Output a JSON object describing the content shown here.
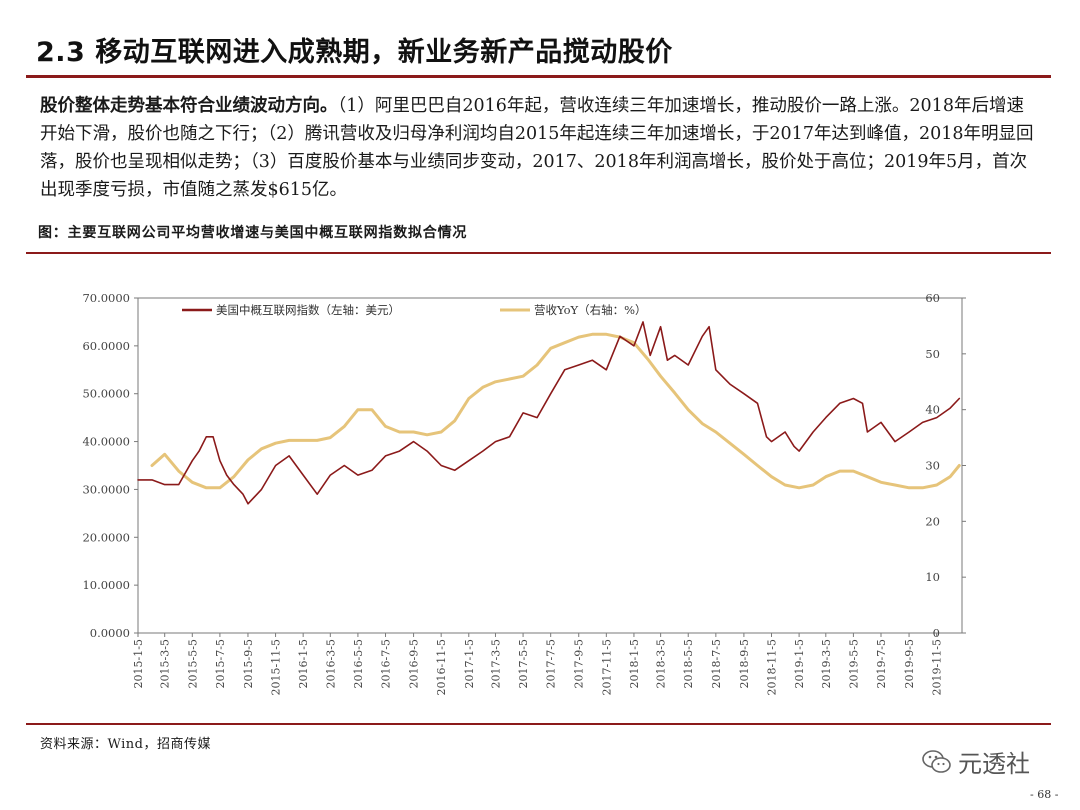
{
  "title": "2.3 移动互联网进入成熟期，新业务新产品搅动股价",
  "paragraph": {
    "lead": "股价整体走势基本符合业绩波动方向。",
    "rest": "（1）阿里巴巴自2016年起，营收连续三年加速增长，推动股价一路上涨。2018年后增速开始下滑，股价也随之下行；（2）腾讯营收及归母净利润均自2015年起连续三年加速增长，于2017年达到峰值，2018年明显回落，股价也呈现相似走势；（3）百度股价基本与业绩同步变动，2017、2018年利润高增长，股价处于高位；2019年5月，首次出现季度亏损，市值随之蒸发$615亿。"
  },
  "figure_caption": "图：主要互联网公司平均营收增速与美国中概互联网指数拟合情况",
  "source": "资料来源：Wind，招商传媒",
  "watermark": "元透社",
  "page_number": "- 68 -",
  "colors": {
    "accent": "#8b1a1a",
    "index_line": "#8b1a1a",
    "yoy_line": "#e6c47a"
  },
  "chart_data": {
    "type": "line",
    "x_tick_labels": [
      "2015-1-5",
      "2015-3-5",
      "2015-5-5",
      "2015-7-5",
      "2015-9-5",
      "2015-11-5",
      "2016-1-5",
      "2016-3-5",
      "2016-5-5",
      "2016-7-5",
      "2016-9-5",
      "2016-11-5",
      "2017-1-5",
      "2017-3-5",
      "2017-5-5",
      "2017-7-5",
      "2017-9-5",
      "2017-11-5",
      "2018-1-5",
      "2018-3-5",
      "2018-5-5",
      "2018-7-5",
      "2018-9-5",
      "2018-11-5",
      "2019-1-5",
      "2019-3-5",
      "2019-5-5",
      "2019-7-5",
      "2019-9-5",
      "2019-11-5"
    ],
    "y_left": {
      "range": [
        0,
        70
      ],
      "tick_labels": [
        "0.0000",
        "10.0000",
        "20.0000",
        "30.0000",
        "40.0000",
        "50.0000",
        "60.0000",
        "70.0000"
      ]
    },
    "y_right": {
      "range": [
        0,
        60
      ],
      "tick_labels": [
        "0",
        "10",
        "20",
        "30",
        "40",
        "50",
        "60"
      ]
    },
    "legend_placement": "top",
    "series": [
      {
        "name": "美国中概互联网指数（左轴：美元）",
        "axis": "left",
        "x": [
          "2015-01-05",
          "2015-02-05",
          "2015-03-05",
          "2015-04-05",
          "2015-05-05",
          "2015-05-20",
          "2015-06-05",
          "2015-06-20",
          "2015-07-05",
          "2015-07-20",
          "2015-08-05",
          "2015-08-25",
          "2015-09-05",
          "2015-10-05",
          "2015-11-05",
          "2015-12-05",
          "2016-01-05",
          "2016-02-05",
          "2016-03-05",
          "2016-04-05",
          "2016-05-05",
          "2016-06-05",
          "2016-07-05",
          "2016-08-05",
          "2016-09-05",
          "2016-10-05",
          "2016-11-05",
          "2016-12-05",
          "2017-01-05",
          "2017-02-05",
          "2017-03-05",
          "2017-04-05",
          "2017-05-05",
          "2017-06-05",
          "2017-07-05",
          "2017-08-05",
          "2017-09-05",
          "2017-10-05",
          "2017-11-05",
          "2017-12-05",
          "2018-01-05",
          "2018-01-25",
          "2018-02-10",
          "2018-03-05",
          "2018-03-20",
          "2018-04-05",
          "2018-05-05",
          "2018-06-05",
          "2018-06-20",
          "2018-07-05",
          "2018-08-05",
          "2018-09-05",
          "2018-10-05",
          "2018-10-25",
          "2018-11-05",
          "2018-12-05",
          "2018-12-25",
          "2019-01-05",
          "2019-02-05",
          "2019-03-05",
          "2019-04-05",
          "2019-05-05",
          "2019-05-25",
          "2019-06-05",
          "2019-07-05",
          "2019-08-05",
          "2019-09-05",
          "2019-10-05",
          "2019-11-05",
          "2019-12-05",
          "2019-12-25"
        ],
        "values": [
          32,
          32,
          31,
          31,
          36,
          38,
          41,
          41,
          36,
          33,
          31,
          29,
          27,
          30,
          35,
          37,
          33,
          29,
          33,
          35,
          33,
          34,
          37,
          38,
          40,
          38,
          35,
          34,
          36,
          38,
          40,
          41,
          46,
          45,
          50,
          55,
          56,
          57,
          55,
          62,
          60,
          65,
          58,
          64,
          57,
          58,
          56,
          62,
          64,
          55,
          52,
          50,
          48,
          41,
          40,
          42,
          39,
          38,
          42,
          45,
          48,
          49,
          48,
          42,
          44,
          40,
          42,
          44,
          45,
          47,
          49
        ]
      },
      {
        "name": "营收YoY（右轴：%）",
        "axis": "right",
        "x": [
          "2015-02-05",
          "2015-03-05",
          "2015-04-05",
          "2015-05-05",
          "2015-06-05",
          "2015-07-05",
          "2015-08-05",
          "2015-09-05",
          "2015-10-05",
          "2015-11-05",
          "2015-12-05",
          "2016-01-05",
          "2016-02-05",
          "2016-03-05",
          "2016-04-05",
          "2016-05-05",
          "2016-06-05",
          "2016-07-05",
          "2016-08-05",
          "2016-09-05",
          "2016-10-05",
          "2016-11-05",
          "2016-12-05",
          "2017-01-05",
          "2017-02-05",
          "2017-03-05",
          "2017-04-05",
          "2017-05-05",
          "2017-06-05",
          "2017-07-05",
          "2017-08-05",
          "2017-09-05",
          "2017-10-05",
          "2017-11-05",
          "2017-12-05",
          "2018-01-05",
          "2018-02-05",
          "2018-03-05",
          "2018-04-05",
          "2018-05-05",
          "2018-06-05",
          "2018-07-05",
          "2018-08-05",
          "2018-09-05",
          "2018-10-05",
          "2018-11-05",
          "2018-12-05",
          "2019-01-05",
          "2019-02-05",
          "2019-03-05",
          "2019-04-05",
          "2019-05-05",
          "2019-06-05",
          "2019-07-05",
          "2019-08-05",
          "2019-09-05",
          "2019-10-05",
          "2019-11-05",
          "2019-12-05",
          "2019-12-25"
        ],
        "values": [
          30,
          32,
          29,
          27,
          26,
          26,
          28,
          31,
          33,
          34,
          34.5,
          34.5,
          34.5,
          35,
          37,
          40,
          40,
          37,
          36,
          36,
          35.5,
          36,
          38,
          42,
          44,
          45,
          45.5,
          46,
          48,
          51,
          52,
          53,
          53.5,
          53.5,
          53,
          52,
          49,
          46,
          43,
          40,
          37.5,
          36,
          34,
          32,
          30,
          28,
          26.5,
          26,
          26.5,
          28,
          29,
          29,
          28,
          27,
          26.5,
          26,
          26,
          26.5,
          28,
          30
        ]
      }
    ]
  }
}
